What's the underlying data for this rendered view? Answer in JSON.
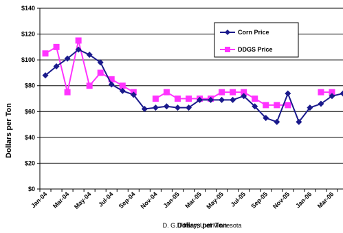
{
  "chart_data": {
    "type": "line",
    "ylabel": "Dollars per Ton",
    "xlabel_overlay": "Dollars per Ton",
    "source_caption": "D. G. Tiffany, U of Minnesota",
    "ylim": [
      0,
      140
    ],
    "y_ticks": [
      "$0",
      "$20",
      "$40",
      "$60",
      "$80",
      "$100",
      "$120",
      "$140"
    ],
    "y_tick_values": [
      0,
      20,
      40,
      60,
      80,
      100,
      120,
      140
    ],
    "x_tick_labels": [
      "Jan-04",
      "Mar-04",
      "May-04",
      "Jul-04",
      "Sep-04",
      "Nov-04",
      "Jan-05",
      "Mar-05",
      "May-05",
      "Jul-05",
      "Sep-05",
      "Nov-05",
      "Jan-06",
      "Mar-06"
    ],
    "months": [
      "Jan-04",
      "Feb-04",
      "Mar-04",
      "Apr-04",
      "May-04",
      "Jun-04",
      "Jul-04",
      "Aug-04",
      "Sep-04",
      "Oct-04",
      "Nov-04",
      "Dec-04",
      "Jan-05",
      "Feb-05",
      "Mar-05",
      "Apr-05",
      "May-05",
      "Jun-05",
      "Jul-05",
      "Aug-05",
      "Sep-05",
      "Oct-05",
      "Nov-05",
      "Dec-05",
      "Jan-06",
      "Feb-06",
      "Mar-06",
      "Apr-06"
    ],
    "grid": "horizontal",
    "legend_position": "top-right",
    "series": [
      {
        "name": "Corn Price",
        "color": "#1a1a8c",
        "marker": "diamond",
        "values": [
          88,
          95,
          101,
          108,
          104,
          98,
          81,
          76,
          73,
          62,
          63,
          64,
          63,
          63,
          69,
          69,
          69,
          69,
          72,
          64,
          55,
          52,
          74,
          52,
          63,
          66,
          72,
          74
        ]
      },
      {
        "name": "DDGS Price",
        "color": "#ff33ff",
        "marker": "square",
        "values": [
          105,
          110,
          75,
          115,
          80,
          90,
          85,
          80,
          75,
          null,
          70,
          75,
          70,
          70,
          70,
          70,
          75,
          75,
          75,
          70,
          65,
          65,
          65,
          null,
          null,
          75,
          75,
          null
        ]
      }
    ]
  }
}
